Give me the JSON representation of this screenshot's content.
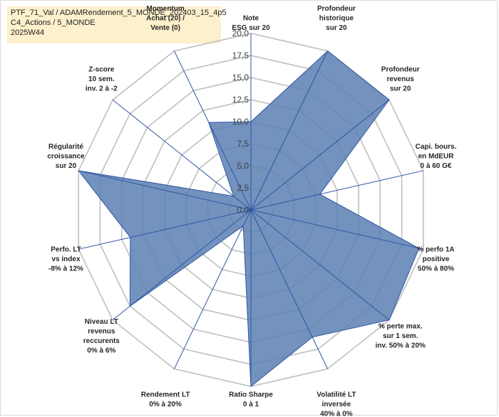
{
  "title_lines": [
    "PTF_71_Val / ADAMRendement_5_MONDE_202403_15_4p5",
    "C4_Actions / 5_MONDE",
    "2025W44"
  ],
  "chart_data": {
    "type": "radar",
    "title": "PTF_71_Val / ADAMRendement_5_MONDE_202403_15_4p5 — C4_Actions / 5_MONDE — 2025W44",
    "rlim": [
      0,
      20
    ],
    "ticks": [
      "0,0",
      "2,5",
      "5,0",
      "7,5",
      "10,0",
      "12,5",
      "15,0",
      "17,5",
      "20,0"
    ],
    "grid": true,
    "fill_color": "#5b7fb3",
    "line_color": "#2f55a4",
    "grid_color": "#bfbfbf",
    "axes": [
      {
        "label": [
          "Note",
          "ESG sur 20"
        ],
        "value": 10
      },
      {
        "label": [
          "Profondeur",
          "historique",
          "sur 20"
        ],
        "value": 20
      },
      {
        "label": [
          "Profondeur",
          "revenus",
          "sur 20"
        ],
        "value": 20
      },
      {
        "label": [
          "Capi. bours.",
          "en MdEUR",
          "0 à 60 G€"
        ],
        "value": 8
      },
      {
        "label": [
          "% perfo 1A",
          "positive",
          "50% à 80%"
        ],
        "value": 19.5
      },
      {
        "label": [
          "% perte max.",
          "sur 1 sem.",
          "inv. 50% à 20%"
        ],
        "value": 20
      },
      {
        "label": [
          "Volatilité LT",
          "inversée",
          "40% à 0%"
        ],
        "value": 16
      },
      {
        "label": [
          "Ratio Sharpe",
          "0 à 1"
        ],
        "value": 20
      },
      {
        "label": [
          "Rendement LT",
          "0% à 20%"
        ],
        "value": 2
      },
      {
        "label": [
          "Niveau LT",
          "revenus",
          "reccurents",
          "0% à 6%"
        ],
        "value": 17.5
      },
      {
        "label": [
          "Perfo. LT",
          "vs index",
          "-8% à 12%"
        ],
        "value": 14
      },
      {
        "label": [
          "Régularité",
          "croissance",
          "sur 20"
        ],
        "value": 20
      },
      {
        "label": [
          "Z-score",
          "10 sem.",
          "inv. 2 à -2"
        ],
        "value": 2.5
      },
      {
        "label": [
          "Momentum",
          "Achat (20) /",
          "Vente (0)"
        ],
        "value": 11
      }
    ]
  }
}
